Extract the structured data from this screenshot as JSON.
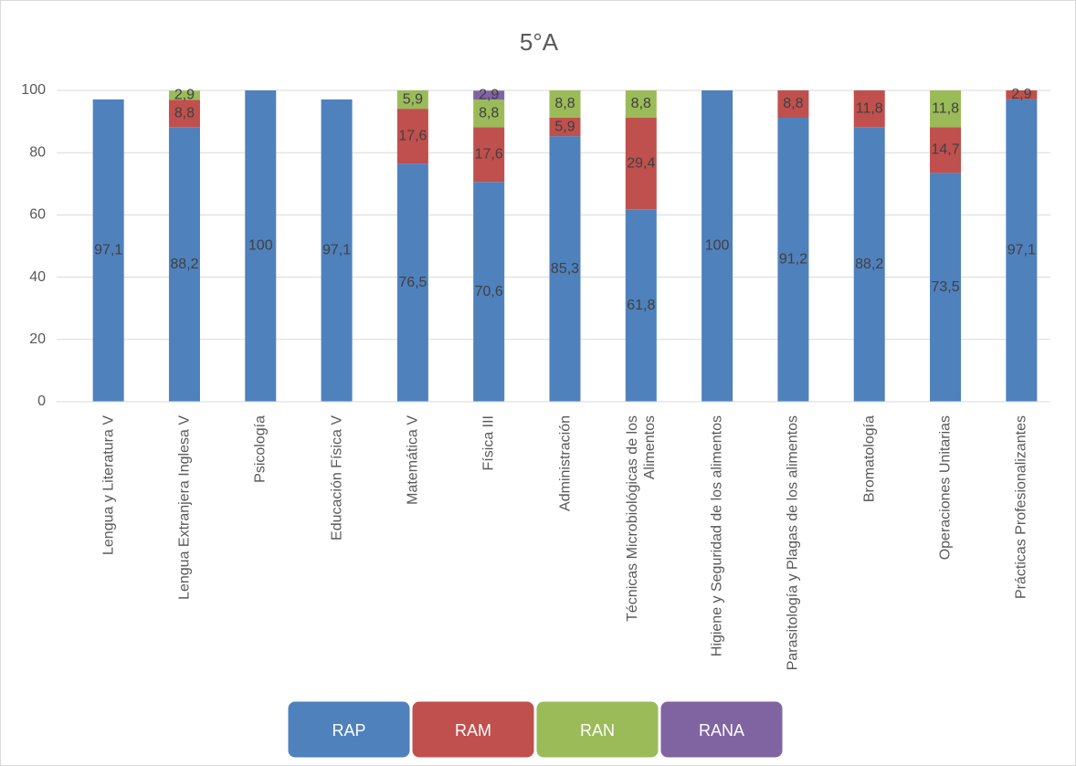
{
  "chart_data": {
    "type": "bar",
    "stacked": true,
    "title": "5°A",
    "categories": [
      "Lengua y Literatura V",
      "Lengua Extranjera Inglesa V",
      "Psicología",
      "Educación Física V",
      "Matemática V",
      "Física III",
      "Administración",
      "Técnicas Microbiológicas de los Alimentos",
      "Higiene y Seguridad de los alimentos",
      "Parasitología y Plagas de los alimentos",
      "Bromatología",
      "Operaciones Unitarias",
      "Prácticas Profesionalizantes"
    ],
    "series": [
      {
        "name": "RAP",
        "color": "#4f81bd",
        "values": [
          97.1,
          88.2,
          100,
          97.1,
          76.5,
          70.6,
          85.3,
          61.8,
          100,
          91.2,
          88.2,
          73.5,
          97.1
        ],
        "value_labels": [
          "97,1",
          "88,2",
          "100",
          "97,1",
          "76,5",
          "70,6",
          "85,3",
          "61,8",
          "100",
          "91,2",
          "88,2",
          "73,5",
          "97,1"
        ]
      },
      {
        "name": "RAM",
        "color": "#c0504d",
        "values": [
          null,
          8.8,
          null,
          null,
          17.6,
          17.6,
          5.9,
          29.4,
          null,
          8.8,
          11.8,
          14.7,
          2.9
        ],
        "value_labels": [
          null,
          "8,8",
          null,
          null,
          "17,6",
          "17,6",
          "5,9",
          "29,4",
          null,
          "8,8",
          "11,8",
          "14,7",
          "2,9"
        ]
      },
      {
        "name": "RAN",
        "color": "#9bbb59",
        "values": [
          null,
          2.9,
          null,
          null,
          5.9,
          8.8,
          8.8,
          8.8,
          null,
          null,
          null,
          11.8,
          null
        ],
        "value_labels": [
          null,
          "2,9",
          null,
          null,
          "5,9",
          "8,8",
          "8,8",
          "8,8",
          null,
          null,
          null,
          "11,8",
          null
        ]
      },
      {
        "name": "RANA",
        "color": "#8064a2",
        "values": [
          null,
          null,
          null,
          null,
          null,
          2.9,
          null,
          null,
          null,
          null,
          null,
          null,
          null
        ],
        "value_labels": [
          null,
          null,
          null,
          null,
          null,
          "2,9",
          null,
          null,
          null,
          null,
          null,
          null,
          null
        ]
      }
    ],
    "ylim": [
      0,
      100
    ],
    "yticks": [
      0,
      20,
      40,
      60,
      80,
      100
    ],
    "grid": true,
    "legend": "bottom"
  }
}
